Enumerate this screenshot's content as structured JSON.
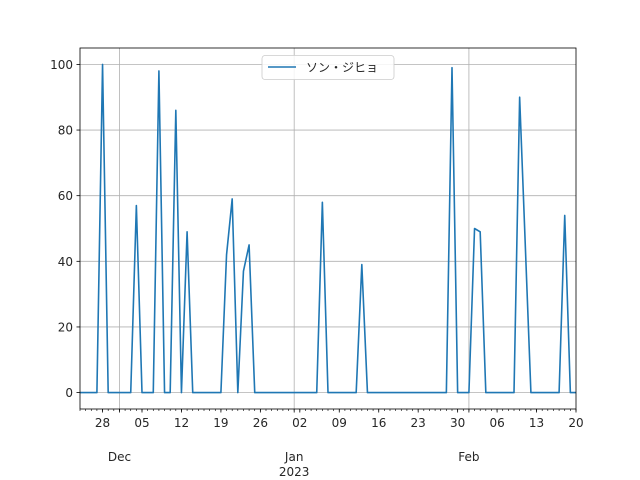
{
  "chart_data": {
    "type": "line",
    "title": "",
    "xlabel": "",
    "ylabel": "",
    "ylim": [
      -5,
      105
    ],
    "xlim": [
      "2022-11-24",
      "2023-02-20"
    ],
    "grid": true,
    "legend_position": "top-center",
    "series": [
      {
        "name": "ソン・ジヒョ",
        "color": "#1f77b4",
        "points": [
          [
            "2022-11-24",
            0
          ],
          [
            "2022-11-27",
            0
          ],
          [
            "2022-11-28",
            100
          ],
          [
            "2022-11-29",
            0
          ],
          [
            "2022-12-03",
            0
          ],
          [
            "2022-12-04",
            57
          ],
          [
            "2022-12-05",
            0
          ],
          [
            "2022-12-07",
            0
          ],
          [
            "2022-12-08",
            98
          ],
          [
            "2022-12-09",
            0
          ],
          [
            "2022-12-10",
            0
          ],
          [
            "2022-12-11",
            86
          ],
          [
            "2022-12-12",
            0
          ],
          [
            "2022-12-13",
            49
          ],
          [
            "2022-12-14",
            0
          ],
          [
            "2022-12-19",
            0
          ],
          [
            "2022-12-20",
            42
          ],
          [
            "2022-12-21",
            59
          ],
          [
            "2022-12-22",
            0
          ],
          [
            "2022-12-23",
            37
          ],
          [
            "2022-12-24",
            45
          ],
          [
            "2022-12-25",
            0
          ],
          [
            "2023-01-05",
            0
          ],
          [
            "2023-01-06",
            58
          ],
          [
            "2023-01-07",
            0
          ],
          [
            "2023-01-12",
            0
          ],
          [
            "2023-01-13",
            39
          ],
          [
            "2023-01-14",
            0
          ],
          [
            "2023-01-28",
            0
          ],
          [
            "2023-01-29",
            99
          ],
          [
            "2023-01-30",
            0
          ],
          [
            "2023-02-01",
            0
          ],
          [
            "2023-02-02",
            50
          ],
          [
            "2023-02-03",
            49
          ],
          [
            "2023-02-04",
            0
          ],
          [
            "2023-02-09",
            0
          ],
          [
            "2023-02-10",
            90
          ],
          [
            "2023-02-12",
            0
          ],
          [
            "2023-02-17",
            0
          ],
          [
            "2023-02-18",
            54
          ],
          [
            "2023-02-19",
            0
          ],
          [
            "2023-02-20",
            0
          ]
        ]
      }
    ],
    "y_ticks": [
      0,
      20,
      40,
      60,
      80,
      100
    ],
    "x_minor_ticks": [
      {
        "date": "2022-11-28",
        "label": "28"
      },
      {
        "date": "2022-12-05",
        "label": "05"
      },
      {
        "date": "2022-12-12",
        "label": "12"
      },
      {
        "date": "2022-12-19",
        "label": "19"
      },
      {
        "date": "2022-12-26",
        "label": "26"
      },
      {
        "date": "2023-01-02",
        "label": "02"
      },
      {
        "date": "2023-01-09",
        "label": "09"
      },
      {
        "date": "2023-01-16",
        "label": "16"
      },
      {
        "date": "2023-01-23",
        "label": "23"
      },
      {
        "date": "2023-01-30",
        "label": "30"
      },
      {
        "date": "2023-02-06",
        "label": "06"
      },
      {
        "date": "2023-02-13",
        "label": "13"
      },
      {
        "date": "2023-02-20",
        "label": "20"
      }
    ],
    "x_major_ticks": [
      {
        "date": "2022-12-01",
        "label": "Dec"
      },
      {
        "date": "2023-01-01",
        "label": "Jan\n2023"
      },
      {
        "date": "2023-02-01",
        "label": "Feb"
      }
    ]
  }
}
